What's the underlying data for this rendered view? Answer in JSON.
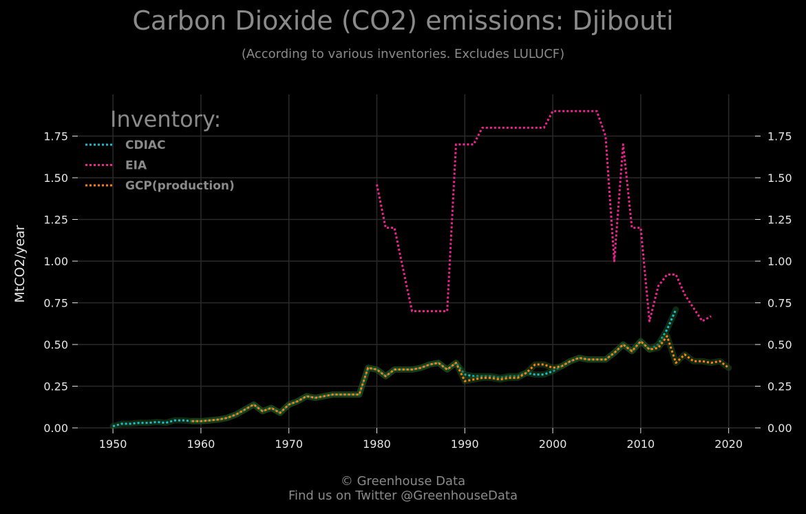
{
  "chart_data": {
    "type": "line",
    "title": "Carbon Dioxide (CO2) emissions: Djibouti",
    "subtitle": "(According to various inventories. Excludes LULUCF)",
    "ylabel": "MtCO2/year",
    "xlabel": "",
    "xlim": [
      1946,
      2023
    ],
    "ylim": [
      0,
      2.0
    ],
    "x_ticks": [
      1950,
      1960,
      1970,
      1980,
      1990,
      2000,
      2010,
      2020
    ],
    "y_ticks": [
      0.0,
      0.25,
      0.5,
      0.75,
      1.0,
      1.25,
      1.5,
      1.75
    ],
    "y_tick_labels": [
      "0.00",
      "0.25",
      "0.50",
      "0.75",
      "1.00",
      "1.25",
      "1.50",
      "1.75"
    ],
    "grid": true,
    "legend_title": "Inventory:",
    "legend_position": "top-left",
    "series": [
      {
        "name": "CDIAC",
        "color": "#17becf",
        "x": [
          1950,
          1951,
          1952,
          1953,
          1954,
          1955,
          1956,
          1957,
          1958,
          1959,
          1960,
          1961,
          1962,
          1963,
          1964,
          1965,
          1966,
          1967,
          1968,
          1969,
          1970,
          1971,
          1972,
          1973,
          1974,
          1975,
          1976,
          1977,
          1978,
          1979,
          1980,
          1981,
          1982,
          1983,
          1984,
          1985,
          1986,
          1987,
          1988,
          1989,
          1990,
          1991,
          1992,
          1993,
          1994,
          1995,
          1996,
          1997,
          1998,
          1999,
          2000,
          2001,
          2002,
          2003,
          2004,
          2005,
          2006,
          2007,
          2008,
          2009,
          2010,
          2011,
          2012,
          2013,
          2014
        ],
        "values": [
          0.01,
          0.025,
          0.025,
          0.03,
          0.03,
          0.035,
          0.03,
          0.045,
          0.045,
          0.04,
          0.04,
          0.045,
          0.05,
          0.06,
          0.08,
          0.11,
          0.14,
          0.1,
          0.12,
          0.09,
          0.14,
          0.16,
          0.19,
          0.18,
          0.19,
          0.2,
          0.2,
          0.2,
          0.2,
          0.36,
          0.35,
          0.31,
          0.35,
          0.35,
          0.35,
          0.36,
          0.38,
          0.39,
          0.35,
          0.39,
          0.32,
          0.31,
          0.31,
          0.31,
          0.3,
          0.31,
          0.31,
          0.33,
          0.32,
          0.32,
          0.34,
          0.37,
          0.4,
          0.42,
          0.41,
          0.41,
          0.41,
          0.45,
          0.5,
          0.46,
          0.52,
          0.47,
          0.5,
          0.59,
          0.71
        ]
      },
      {
        "name": "EIA",
        "color": "#f02390",
        "x": [
          1980,
          1981,
          1982,
          1983,
          1984,
          1985,
          1986,
          1987,
          1988,
          1989,
          1990,
          1991,
          1992,
          1993,
          1994,
          1995,
          1996,
          1997,
          1998,
          1999,
          2000,
          2001,
          2002,
          2003,
          2004,
          2005,
          2006,
          2007,
          2008,
          2009,
          2010,
          2011,
          2012,
          2013,
          2014,
          2015,
          2016,
          2017,
          2018
        ],
        "values": [
          1.46,
          1.2,
          1.2,
          0.95,
          0.7,
          0.7,
          0.7,
          0.7,
          0.7,
          1.7,
          1.7,
          1.7,
          1.8,
          1.8,
          1.8,
          1.8,
          1.8,
          1.8,
          1.8,
          1.8,
          1.9,
          1.9,
          1.9,
          1.9,
          1.9,
          1.9,
          1.75,
          1.0,
          1.7,
          1.2,
          1.2,
          0.64,
          0.85,
          0.92,
          0.92,
          0.8,
          0.72,
          0.64,
          0.67
        ]
      },
      {
        "name": "GCP(production)",
        "color": "#ff7f0e",
        "x": [
          1959,
          1960,
          1961,
          1962,
          1963,
          1964,
          1965,
          1966,
          1967,
          1968,
          1969,
          1970,
          1971,
          1972,
          1973,
          1974,
          1975,
          1976,
          1977,
          1978,
          1979,
          1980,
          1981,
          1982,
          1983,
          1984,
          1985,
          1986,
          1987,
          1988,
          1989,
          1990,
          1991,
          1992,
          1993,
          1994,
          1995,
          1996,
          1997,
          1998,
          1999,
          2000,
          2001,
          2002,
          2003,
          2004,
          2005,
          2006,
          2007,
          2008,
          2009,
          2010,
          2011,
          2012,
          2013,
          2014,
          2015,
          2016,
          2017,
          2018,
          2019,
          2020
        ],
        "values": [
          0.04,
          0.04,
          0.045,
          0.05,
          0.06,
          0.08,
          0.11,
          0.14,
          0.1,
          0.12,
          0.09,
          0.14,
          0.16,
          0.19,
          0.18,
          0.19,
          0.2,
          0.2,
          0.2,
          0.2,
          0.36,
          0.35,
          0.31,
          0.35,
          0.35,
          0.35,
          0.36,
          0.38,
          0.39,
          0.35,
          0.39,
          0.28,
          0.29,
          0.3,
          0.3,
          0.29,
          0.3,
          0.3,
          0.33,
          0.38,
          0.38,
          0.36,
          0.37,
          0.4,
          0.42,
          0.41,
          0.41,
          0.41,
          0.45,
          0.5,
          0.46,
          0.52,
          0.47,
          0.48,
          0.55,
          0.39,
          0.44,
          0.4,
          0.4,
          0.39,
          0.4,
          0.36
        ]
      }
    ]
  },
  "footer": {
    "line1": "© Greenhouse Data",
    "line2": "Find us on Twitter @GreenhouseData"
  }
}
